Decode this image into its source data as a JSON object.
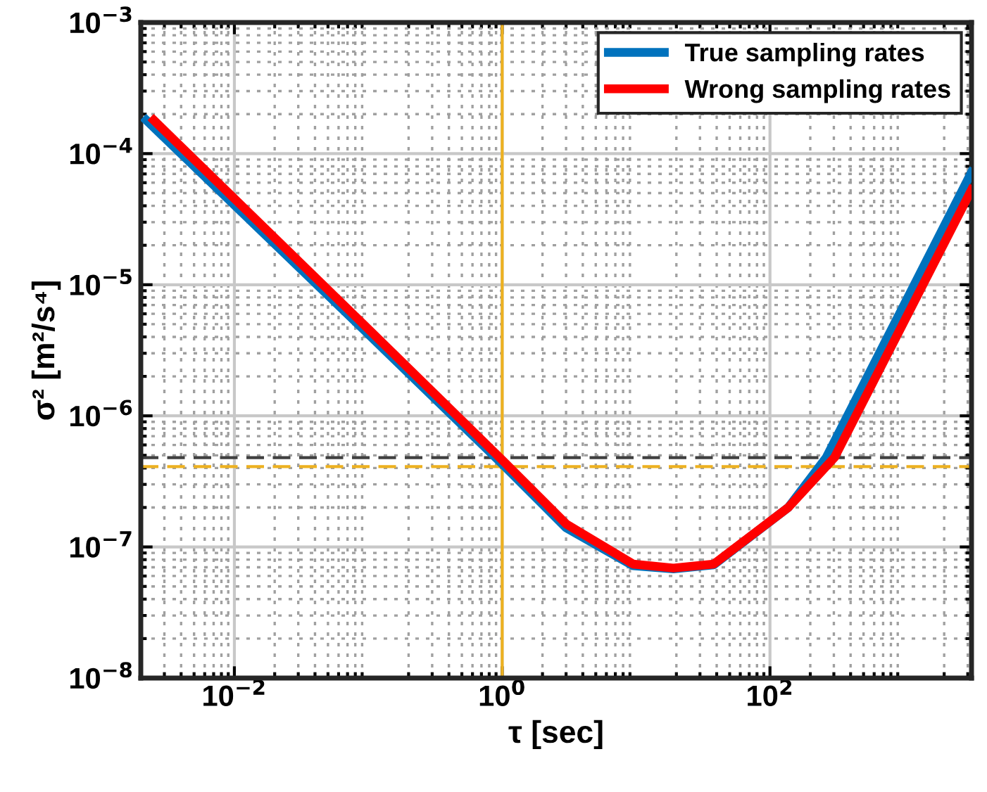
{
  "chart_data": {
    "type": "line",
    "xlabel": "τ [sec]",
    "ylabel": "σ² [m²/s⁴]",
    "log": "xy",
    "grid": true,
    "legend": "top right",
    "line_style": "solid",
    "marker": "none",
    "xlim": [
      0.002,
      3200
    ],
    "ylim": [
      1e-08,
      0.001
    ],
    "xticks": [
      {
        "value": 0.01,
        "label": "10$^{−2}$"
      },
      {
        "value": 1,
        "label": "10$^{0}$"
      },
      {
        "value": 100,
        "label": "10$^{2}$"
      }
    ],
    "yticks": [
      {
        "value": 1e-08,
        "label": "10$^{−8}$"
      },
      {
        "value": 1e-07,
        "label": "10$^{−7}$"
      },
      {
        "value": 1e-06,
        "label": "10$^{−6}$"
      },
      {
        "value": 1e-05,
        "label": "10$^{−5}$"
      },
      {
        "value": 0.0001,
        "label": "10$^{−4}$"
      },
      {
        "value": 0.001,
        "label": "10$^{−3}$"
      }
    ],
    "series": [
      {
        "name": "True sampling rates",
        "color": "#0072bd",
        "x": [
          0.0022,
          0.1,
          1,
          3,
          9.5,
          19,
          38,
          137,
          263,
          3200
        ],
        "values": [
          0.00018,
          4.2e-06,
          4.3e-07,
          1.4e-07,
          7.2e-08,
          6.8e-08,
          7.3e-08,
          2e-07,
          4.8e-07,
          7.2e-05
        ]
      },
      {
        "name": "Wrong sampling rates",
        "color": "#ff0000",
        "x": [
          0.0025,
          0.1,
          1,
          3,
          9.5,
          19,
          38,
          137,
          303,
          3200
        ],
        "values": [
          0.00018,
          4.6e-06,
          4.6e-07,
          1.5e-07,
          7.4e-08,
          6.9e-08,
          7.4e-08,
          2e-07,
          4.8e-07,
          5.3e-05
        ]
      }
    ],
    "ref_lines": [
      {
        "axis": "x",
        "value": 1,
        "color": "#edb120",
        "line_style": "solid"
      },
      {
        "axis": "y",
        "value": 4.1e-07,
        "color": "#edb120",
        "line_style": "dashed"
      },
      {
        "axis": "y",
        "value": 4.8e-07,
        "color": "#404040",
        "line_style": "dashed"
      }
    ]
  }
}
